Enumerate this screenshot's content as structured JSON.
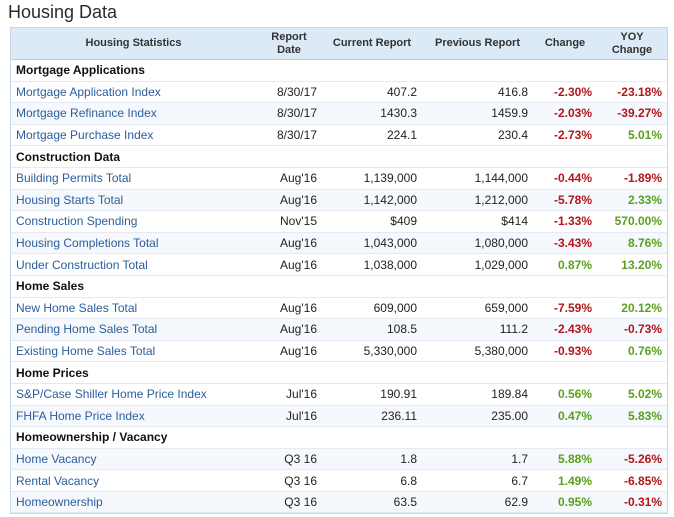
{
  "page_title": "Housing Data",
  "headers": {
    "stat": "Housing Statistics",
    "date": "Report Date",
    "current": "Current Report",
    "previous": "Previous Report",
    "change": "Change",
    "yoy": "YOY Change"
  },
  "colors": {
    "positive": "#5aa01e",
    "negative": "#b0161c",
    "link": "#2a5e9c",
    "header_bg": "#dce9f7"
  },
  "sections": [
    {
      "title": "Mortgage Applications",
      "rows": [
        {
          "name": "Mortgage Application Index",
          "date": "8/30/17",
          "current": "407.2",
          "previous": "416.8",
          "change": "-2.30%",
          "yoy": "-23.18%"
        },
        {
          "name": "Mortgage Refinance Index",
          "date": "8/30/17",
          "current": "1430.3",
          "previous": "1459.9",
          "change": "-2.03%",
          "yoy": "-39.27%"
        },
        {
          "name": "Mortgage Purchase Index",
          "date": "8/30/17",
          "current": "224.1",
          "previous": "230.4",
          "change": "-2.73%",
          "yoy": "5.01%"
        }
      ]
    },
    {
      "title": "Construction Data",
      "rows": [
        {
          "name": "Building Permits Total",
          "date": "Aug'16",
          "current": "1,139,000",
          "previous": "1,144,000",
          "change": "-0.44%",
          "yoy": "-1.89%"
        },
        {
          "name": "Housing Starts Total",
          "date": "Aug'16",
          "current": "1,142,000",
          "previous": "1,212,000",
          "change": "-5.78%",
          "yoy": "2.33%"
        },
        {
          "name": "Construction Spending",
          "date": "Nov'15",
          "current": "$409",
          "previous": "$414",
          "change": "-1.33%",
          "yoy": "570.00%"
        },
        {
          "name": "Housing Completions Total",
          "date": "Aug'16",
          "current": "1,043,000",
          "previous": "1,080,000",
          "change": "-3.43%",
          "yoy": "8.76%"
        },
        {
          "name": "Under Construction Total",
          "date": "Aug'16",
          "current": "1,038,000",
          "previous": "1,029,000",
          "change": "0.87%",
          "yoy": "13.20%"
        }
      ]
    },
    {
      "title": "Home Sales",
      "rows": [
        {
          "name": "New Home Sales Total",
          "date": "Aug'16",
          "current": "609,000",
          "previous": "659,000",
          "change": "-7.59%",
          "yoy": "20.12%"
        },
        {
          "name": "Pending Home Sales Total",
          "date": "Aug'16",
          "current": "108.5",
          "previous": "111.2",
          "change": "-2.43%",
          "yoy": "-0.73%"
        },
        {
          "name": "Existing Home Sales Total",
          "date": "Aug'16",
          "current": "5,330,000",
          "previous": "5,380,000",
          "change": "-0.93%",
          "yoy": "0.76%"
        }
      ]
    },
    {
      "title": "Home Prices",
      "rows": [
        {
          "name": "S&P/Case Shiller Home Price Index",
          "date": "Jul'16",
          "current": "190.91",
          "previous": "189.84",
          "change": "0.56%",
          "yoy": "5.02%"
        },
        {
          "name": "FHFA Home Price Index",
          "date": "Jul'16",
          "current": "236.11",
          "previous": "235.00",
          "change": "0.47%",
          "yoy": "5.83%"
        }
      ]
    },
    {
      "title": "Homeownership / Vacancy",
      "rows": [
        {
          "name": "Home Vacancy",
          "date": "Q3 16",
          "current": "1.8",
          "previous": "1.7",
          "change": "5.88%",
          "yoy": "-5.26%"
        },
        {
          "name": "Rental Vacancy",
          "date": "Q3 16",
          "current": "6.8",
          "previous": "6.7",
          "change": "1.49%",
          "yoy": "-6.85%"
        },
        {
          "name": "Homeownership",
          "date": "Q3 16",
          "current": "63.5",
          "previous": "62.9",
          "change": "0.95%",
          "yoy": "-0.31%"
        }
      ]
    }
  ]
}
